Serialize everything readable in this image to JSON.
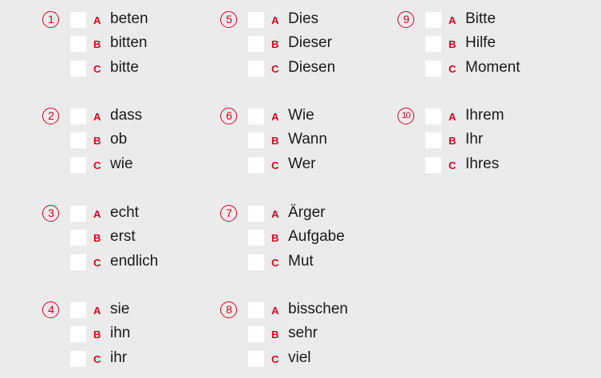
{
  "colors": {
    "accent": "#d7001e",
    "background": "#ebebeb"
  },
  "questions": [
    {
      "number": "1",
      "options": [
        {
          "letter": "A",
          "text": "beten"
        },
        {
          "letter": "B",
          "text": "bitten"
        },
        {
          "letter": "C",
          "text": "bitte"
        }
      ]
    },
    {
      "number": "2",
      "options": [
        {
          "letter": "A",
          "text": "dass"
        },
        {
          "letter": "B",
          "text": "ob"
        },
        {
          "letter": "C",
          "text": "wie"
        }
      ]
    },
    {
      "number": "3",
      "options": [
        {
          "letter": "A",
          "text": "echt"
        },
        {
          "letter": "B",
          "text": "erst"
        },
        {
          "letter": "C",
          "text": "endlich"
        }
      ]
    },
    {
      "number": "4",
      "options": [
        {
          "letter": "A",
          "text": "sie"
        },
        {
          "letter": "B",
          "text": "ihn"
        },
        {
          "letter": "C",
          "text": "ihr"
        }
      ]
    },
    {
      "number": "5",
      "options": [
        {
          "letter": "A",
          "text": "Dies"
        },
        {
          "letter": "B",
          "text": "Dieser"
        },
        {
          "letter": "C",
          "text": "Diesen"
        }
      ]
    },
    {
      "number": "6",
      "options": [
        {
          "letter": "A",
          "text": "Wie"
        },
        {
          "letter": "B",
          "text": "Wann"
        },
        {
          "letter": "C",
          "text": "Wer"
        }
      ]
    },
    {
      "number": "7",
      "options": [
        {
          "letter": "A",
          "text": "Ärger"
        },
        {
          "letter": "B",
          "text": "Aufgabe"
        },
        {
          "letter": "C",
          "text": "Mut"
        }
      ]
    },
    {
      "number": "8",
      "options": [
        {
          "letter": "A",
          "text": "bisschen"
        },
        {
          "letter": "B",
          "text": "sehr"
        },
        {
          "letter": "C",
          "text": "viel"
        }
      ]
    },
    {
      "number": "9",
      "options": [
        {
          "letter": "A",
          "text": "Bitte"
        },
        {
          "letter": "B",
          "text": "Hilfe"
        },
        {
          "letter": "C",
          "text": "Moment"
        }
      ]
    },
    {
      "number": "10",
      "options": [
        {
          "letter": "A",
          "text": "Ihrem"
        },
        {
          "letter": "B",
          "text": "Ihr"
        },
        {
          "letter": "C",
          "text": "Ihres"
        }
      ]
    }
  ]
}
